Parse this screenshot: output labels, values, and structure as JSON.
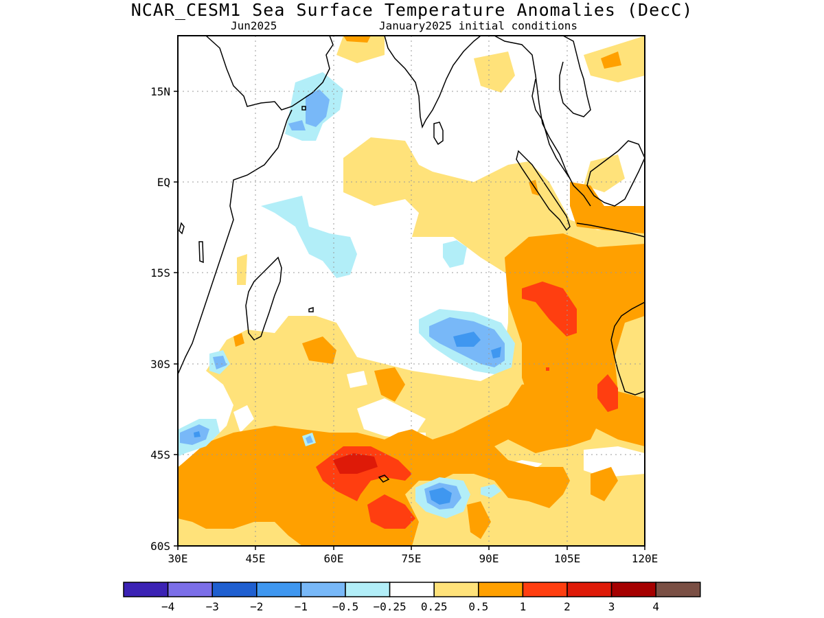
{
  "title": "NCAR_CESM1 Sea Surface Temperature Anomalies (DecC)",
  "subtitle_left": "Jun2025",
  "subtitle_right": "January2025 initial conditions",
  "map": {
    "lat_labels": [
      "15N",
      "EQ",
      "15S",
      "30S",
      "45S",
      "60S"
    ],
    "lon_labels": [
      "30E",
      "45E",
      "60E",
      "75E",
      "90E",
      "105E",
      "120E"
    ]
  },
  "colorbar": {
    "colors": [
      "#3b22b4",
      "#7b6ee8",
      "#1f5fd0",
      "#3f97f0",
      "#78b8f8",
      "#b2eef8",
      "#ffffff",
      "#ffe27a",
      "#ffa000",
      "#ff3e10",
      "#de1a08",
      "#a50000",
      "#7a4f44"
    ],
    "labels": [
      "−4",
      "−3",
      "−2",
      "−1",
      "−0.5",
      "−0.25",
      "0.25",
      "0.5",
      "1",
      "2",
      "3",
      "4"
    ]
  }
}
